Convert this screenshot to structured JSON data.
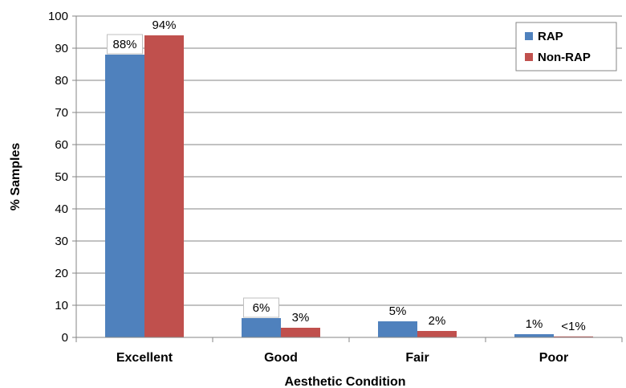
{
  "chart_data": {
    "type": "bar",
    "title": "",
    "xlabel": "Aesthetic Condition",
    "ylabel": "% Samples",
    "ylim": [
      0,
      100
    ],
    "yticks": [
      0,
      10,
      20,
      30,
      40,
      50,
      60,
      70,
      80,
      90,
      100
    ],
    "grid": true,
    "legend_position": "top-right",
    "categories": [
      "Excellent",
      "Good",
      "Fair",
      "Poor"
    ],
    "series": [
      {
        "name": "RAP",
        "color": "#4f81bd",
        "values": [
          88,
          6,
          5,
          1
        ],
        "labels": [
          "88%",
          "6%",
          "5%",
          "1%"
        ]
      },
      {
        "name": "Non-RAP",
        "color": "#c0504d",
        "values": [
          94,
          3,
          2,
          0.3
        ],
        "labels": [
          "94%",
          "3%",
          "2%",
          "<1%"
        ]
      }
    ]
  }
}
